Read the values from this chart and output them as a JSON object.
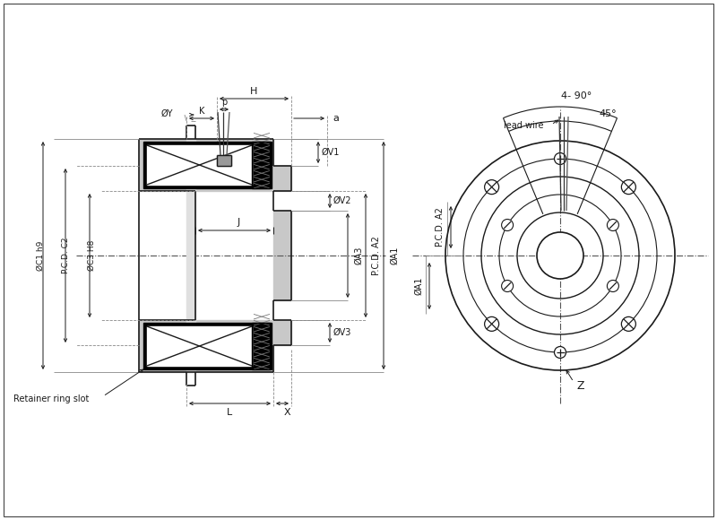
{
  "bg_color": "#ffffff",
  "line_color": "#1a1a1a",
  "gray_fill": "#c8c8c8",
  "dark_fill": "#000000",
  "white_fill": "#ffffff",
  "labels": {
    "H": "H",
    "p": "p",
    "a": "a",
    "K": "K",
    "Y": "ØY",
    "V1": "ØV1",
    "V2": "ØV2",
    "V3": "ØV3",
    "J": "J",
    "C1": "ØC1 h9",
    "C2": "P.C.D. C2",
    "C3": "ØC3 H8",
    "A3": "ØA3",
    "A2": "P.C.D. A2",
    "A1": "ØA1",
    "L": "L",
    "X": "X",
    "retainer": "Retainer ring slot",
    "lead_wire": "lead wire",
    "angle1": "4- 90°",
    "angle2": "45°",
    "Z": "Z"
  }
}
